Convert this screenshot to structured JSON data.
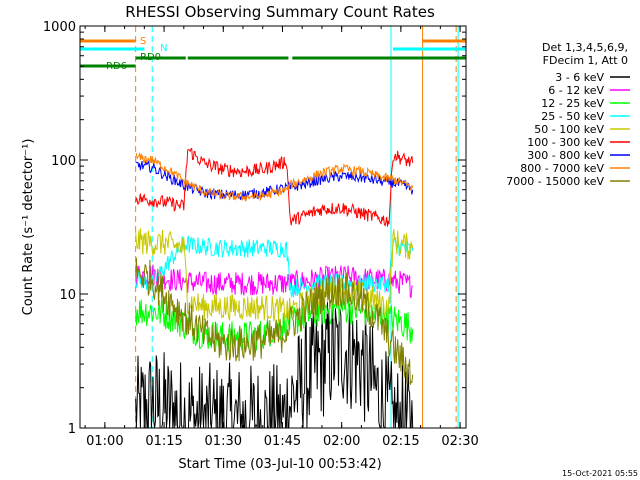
{
  "chart_data": {
    "type": "line",
    "title": "RHESSI Observing Summary Count Rates",
    "xlabel": "Start Time (03-Jul-10 00:53:42)",
    "ylabel": "Count Rate (s⁻¹ detector⁻¹)",
    "footer": "15-Oct-2021 05:55",
    "x_start": "00:53:42",
    "xlim": [
      "00:53:42",
      "02:31:30"
    ],
    "ylim": [
      1,
      1000
    ],
    "y_scale": "log",
    "x_ticks": [
      "01:00",
      "01:15",
      "01:30",
      "01:45",
      "02:00",
      "02:15",
      "02:30"
    ],
    "y_ticks": [
      "1",
      "10",
      "100",
      "1000"
    ],
    "legend_header": [
      "Det 1,3,4,5,6,9,",
      "FDecim 1, Att 0"
    ],
    "legend_position": "right",
    "series": [
      {
        "name": "3 - 6 keV",
        "color": "#000000",
        "points": [
          [
            "01:07:48",
            1.2
          ],
          [
            "01:12",
            1.5
          ],
          [
            "01:20",
            1.2
          ],
          [
            "01:25",
            1.1
          ],
          [
            "01:30",
            1.1
          ],
          [
            "01:35",
            1.1
          ],
          [
            "01:40",
            1.1
          ],
          [
            "01:45",
            1.1
          ],
          [
            "01:48",
            1.8
          ],
          [
            "01:55",
            3.2
          ],
          [
            "02:00",
            4.0
          ],
          [
            "02:05",
            3.2
          ],
          [
            "02:10",
            1.6
          ],
          [
            "02:13",
            1.1
          ],
          [
            "02:16",
            1.1
          ],
          [
            "02:18",
            1.0
          ]
        ]
      },
      {
        "name": "6 - 12 keV",
        "color": "#ff00ff",
        "points": [
          [
            "01:07:48",
            14
          ],
          [
            "01:12",
            14
          ],
          [
            "01:16",
            13
          ],
          [
            "01:20",
            12.5
          ],
          [
            "01:25",
            12
          ],
          [
            "01:30",
            12
          ],
          [
            "01:35",
            12
          ],
          [
            "01:40",
            12
          ],
          [
            "01:47",
            12
          ],
          [
            "01:55",
            13
          ],
          [
            "02:00",
            13.5
          ],
          [
            "02:05",
            13
          ],
          [
            "02:13",
            12.5
          ],
          [
            "02:16",
            12
          ],
          [
            "02:18",
            11.5
          ]
        ]
      },
      {
        "name": "12 - 25 keV",
        "color": "#00ff00",
        "points": [
          [
            "01:07:48",
            7.5
          ],
          [
            "01:12",
            7.5
          ],
          [
            "01:16",
            7
          ],
          [
            "01:20",
            6
          ],
          [
            "01:25",
            5
          ],
          [
            "01:30",
            4.8
          ],
          [
            "01:35",
            4.8
          ],
          [
            "01:40",
            5
          ],
          [
            "01:47",
            6.2
          ],
          [
            "01:55",
            7.5
          ],
          [
            "02:00",
            8
          ],
          [
            "02:05",
            7.5
          ],
          [
            "02:13",
            6.5
          ],
          [
            "02:16",
            6
          ],
          [
            "02:18",
            5.5
          ]
        ]
      },
      {
        "name": "25 - 50 keV",
        "color": "#00ffff",
        "points": [
          [
            "01:07:48",
            13
          ],
          [
            "01:12",
            12
          ],
          [
            "01:20",
            24
          ],
          [
            "01:22",
            23
          ],
          [
            "01:30",
            22
          ],
          [
            "01:40",
            22
          ],
          [
            "01:46",
            22
          ],
          [
            "01:47",
            11
          ],
          [
            "01:55",
            12
          ],
          [
            "02:00",
            12
          ],
          [
            "02:05",
            12
          ],
          [
            "02:12",
            12
          ],
          [
            "02:13",
            23
          ],
          [
            "02:16",
            22
          ],
          [
            "02:18",
            21
          ]
        ]
      },
      {
        "name": "50 - 100 keV",
        "color": "#c8c800",
        "points": [
          [
            "01:07:48",
            25
          ],
          [
            "01:12",
            24
          ],
          [
            "01:15",
            24
          ],
          [
            "01:20",
            22
          ],
          [
            "01:21",
            9
          ],
          [
            "01:25",
            8
          ],
          [
            "01:30",
            8
          ],
          [
            "01:40",
            8
          ],
          [
            "01:46",
            7.5
          ],
          [
            "01:47",
            7.5
          ],
          [
            "01:55",
            10
          ],
          [
            "02:00",
            11
          ],
          [
            "02:05",
            10
          ],
          [
            "02:12",
            8
          ],
          [
            "02:13",
            25
          ],
          [
            "02:16",
            23
          ],
          [
            "02:18",
            22
          ]
        ]
      },
      {
        "name": "100 - 300 keV",
        "color": "#ff0000",
        "points": [
          [
            "01:07:48",
            52
          ],
          [
            "01:12",
            50
          ],
          [
            "01:16",
            48
          ],
          [
            "01:20",
            45
          ],
          [
            "01:21",
            120
          ],
          [
            "01:25",
            95
          ],
          [
            "01:30",
            85
          ],
          [
            "01:35",
            82
          ],
          [
            "01:40",
            85
          ],
          [
            "01:45",
            95
          ],
          [
            "01:46",
            100
          ],
          [
            "01:47",
            35
          ],
          [
            "01:55",
            43
          ],
          [
            "02:00",
            44
          ],
          [
            "02:05",
            40
          ],
          [
            "02:12",
            35
          ],
          [
            "02:13",
            110
          ],
          [
            "02:16",
            100
          ],
          [
            "02:18",
            95
          ]
        ]
      },
      {
        "name": "300 - 800 keV",
        "color": "#0000ff",
        "points": [
          [
            "01:07:48",
            92
          ],
          [
            "01:12",
            88
          ],
          [
            "01:16",
            75
          ],
          [
            "01:20",
            65
          ],
          [
            "01:25",
            57
          ],
          [
            "01:30",
            55
          ],
          [
            "01:35",
            55
          ],
          [
            "01:40",
            57
          ],
          [
            "01:46",
            62
          ],
          [
            "01:47",
            62
          ],
          [
            "01:55",
            72
          ],
          [
            "02:00",
            76
          ],
          [
            "02:05",
            74
          ],
          [
            "02:12",
            68
          ],
          [
            "02:13",
            68
          ],
          [
            "02:16",
            64
          ],
          [
            "02:18",
            60
          ]
        ]
      },
      {
        "name": "800 - 7000 keV",
        "color": "#ff8000",
        "points": [
          [
            "01:07:48",
            105
          ],
          [
            "01:12",
            100
          ],
          [
            "01:16",
            85
          ],
          [
            "01:20",
            70
          ],
          [
            "01:25",
            58
          ],
          [
            "01:30",
            54
          ],
          [
            "01:35",
            53
          ],
          [
            "01:40",
            54
          ],
          [
            "01:46",
            60
          ],
          [
            "01:47",
            65
          ],
          [
            "01:55",
            80
          ],
          [
            "02:00",
            86
          ],
          [
            "02:05",
            82
          ],
          [
            "02:12",
            72
          ],
          [
            "02:13",
            72
          ],
          [
            "02:16",
            66
          ],
          [
            "02:18",
            62
          ]
        ]
      },
      {
        "name": "7000 - 15000 keV",
        "color": "#808000",
        "points": [
          [
            "01:07:48",
            14.5
          ],
          [
            "01:12",
            13
          ],
          [
            "01:15",
            10
          ],
          [
            "01:20",
            7
          ],
          [
            "01:25",
            5
          ],
          [
            "01:30",
            4.2
          ],
          [
            "01:35",
            4.2
          ],
          [
            "01:40",
            4.5
          ],
          [
            "01:45",
            5
          ],
          [
            "01:47",
            6
          ],
          [
            "01:55",
            10
          ],
          [
            "02:00",
            11
          ],
          [
            "02:05",
            9
          ],
          [
            "02:10",
            6
          ],
          [
            "02:13",
            4
          ],
          [
            "02:16",
            3
          ],
          [
            "02:18",
            2.5
          ]
        ]
      }
    ],
    "flag_bars": [
      {
        "label": "S",
        "color": "#ff8000",
        "segments": [
          [
            "00:53:42",
            "01:07:48"
          ],
          [
            "02:20:30",
            "02:31:30"
          ]
        ]
      },
      {
        "label": "N",
        "color": "#00ffff",
        "segments": [
          [
            "00:53:42",
            "01:10:00"
          ],
          [
            "02:13:00",
            "02:31:30"
          ]
        ]
      },
      {
        "label": "RD0",
        "color": "#008000",
        "segments": [
          [
            "01:07:48",
            "01:20:30"
          ],
          [
            "01:21:00",
            "01:46:30"
          ],
          [
            "01:47:30",
            "02:13:00"
          ],
          [
            "02:13:00",
            "02:31:30"
          ]
        ]
      },
      {
        "label": "RD6",
        "color": "#008000",
        "segments": [
          [
            "00:53:42",
            "01:07:48"
          ]
        ]
      }
    ],
    "vlines": [
      {
        "x": "00:53:42",
        "color": "#00ffff",
        "style": "solid"
      },
      {
        "x": "01:07:48",
        "color": "#ff8000",
        "style": "dashed"
      },
      {
        "x": "01:12:00",
        "color": "#00ffff",
        "style": "dashed"
      },
      {
        "x": "02:12:30",
        "color": "#00ffff",
        "style": "solid"
      },
      {
        "x": "02:20:30",
        "color": "#ff8000",
        "style": "solid"
      },
      {
        "x": "02:29:00",
        "color": "#ff8000",
        "style": "dashed"
      },
      {
        "x": "02:29:30",
        "color": "#00ffff",
        "style": "solid"
      }
    ]
  }
}
